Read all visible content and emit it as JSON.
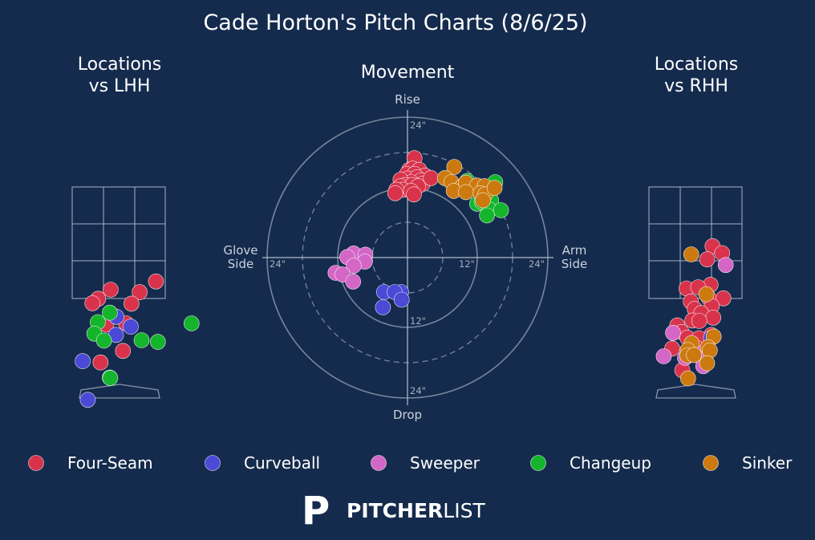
{
  "title": "Cade Horton's Pitch Charts (8/6/25)",
  "panels": {
    "lhh_title": [
      "Locations",
      "vs LHH"
    ],
    "movement_title": "Movement",
    "rhh_title": [
      "Locations",
      "vs RHH"
    ]
  },
  "movement_axes": {
    "top": "Rise",
    "bottom": "Drop",
    "left": [
      "Glove",
      "Side"
    ],
    "right": [
      "Arm",
      "Side"
    ],
    "ring_labels": {
      "h_inner": "12\"",
      "h_outer": "24\"",
      "v_inner": "12\"",
      "v_outer": "24\""
    }
  },
  "colors": {
    "background": "#152b4d",
    "Four-Seam": "#d9334c",
    "Curveball": "#4a4ad6",
    "Sweeper": "#d466c6",
    "Changeup": "#14b52c",
    "Sinker": "#cc7a0f"
  },
  "legend": [
    {
      "name": "Four-Seam"
    },
    {
      "name": "Curveball"
    },
    {
      "name": "Sweeper"
    },
    {
      "name": "Changeup"
    },
    {
      "name": "Sinker"
    }
  ],
  "chart_data": [
    {
      "type": "scatter",
      "panel": "Locations vs LHH",
      "units": "feet from plate center (x), feet above ground (y)",
      "series": [
        {
          "name": "Four-Seam",
          "points": [
            [
              0.96,
              3.0
            ],
            [
              -0.21,
              2.8
            ],
            [
              0.54,
              2.74
            ],
            [
              -0.53,
              2.58
            ],
            [
              -0.68,
              2.47
            ],
            [
              0.33,
              2.46
            ],
            [
              -0.32,
              1.95
            ],
            [
              0.19,
              1.98
            ],
            [
              0.11,
              1.31
            ],
            [
              -0.47,
              1.03
            ]
          ]
        },
        {
          "name": "Curveball",
          "points": [
            [
              -0.06,
              2.14
            ],
            [
              0.31,
              1.9
            ],
            [
              -0.07,
              1.7
            ],
            [
              -0.93,
              1.06
            ],
            [
              -0.8,
              0.12
            ]
          ]
        },
        {
          "name": "Changeup",
          "points": [
            [
              -0.23,
              2.24
            ],
            [
              1.88,
              1.98
            ],
            [
              -0.54,
              2.01
            ],
            [
              -0.63,
              1.73
            ],
            [
              -0.38,
              1.56
            ],
            [
              0.59,
              1.57
            ],
            [
              1.01,
              1.53
            ],
            [
              -0.23,
              0.66
            ],
            [
              -0.22,
              0.65
            ]
          ]
        }
      ]
    },
    {
      "type": "scatter",
      "panel": "Movement",
      "units": "inches of break (x: arm side positive, y: rise positive)",
      "series": [
        {
          "name": "Four-Seam",
          "points": [
            [
              1.2,
              17.0
            ],
            [
              0.3,
              15.0
            ],
            [
              0.9,
              15.2
            ],
            [
              2.0,
              15.0
            ],
            [
              -0.1,
              14.3
            ],
            [
              1.2,
              14.3
            ],
            [
              3.0,
              14.0
            ],
            [
              0.0,
              13.5
            ],
            [
              1.6,
              13.7
            ],
            [
              2.3,
              13.2
            ],
            [
              0.6,
              12.9
            ],
            [
              -1.2,
              13.3
            ],
            [
              -0.4,
              12.4
            ],
            [
              2.6,
              12.6
            ],
            [
              4.0,
              13.6
            ],
            [
              -1.2,
              12.2
            ],
            [
              0.8,
              12.4
            ],
            [
              1.8,
              12.2
            ],
            [
              -0.8,
              11.6
            ],
            [
              -1.9,
              11.6
            ],
            [
              0.6,
              11.4
            ],
            [
              -2.1,
              11.0
            ],
            [
              1.1,
              10.8
            ]
          ]
        },
        {
          "name": "Curveball",
          "points": [
            [
              -4.0,
              -5.9
            ],
            [
              -1.1,
              -5.9
            ],
            [
              -2.2,
              -5.9
            ],
            [
              -1.0,
              -7.2
            ],
            [
              -4.2,
              -8.5
            ]
          ]
        },
        {
          "name": "Sweeper",
          "points": [
            [
              -9.2,
              0.7
            ],
            [
              -7.2,
              0.5
            ],
            [
              -10.3,
              0.1
            ],
            [
              -7.3,
              -0.7
            ],
            [
              -9.2,
              -1.4
            ],
            [
              -12.3,
              -2.6
            ],
            [
              -11.1,
              -2.9
            ],
            [
              -9.3,
              -4.1
            ]
          ]
        },
        {
          "name": "Changeup",
          "points": [
            [
              15.0,
              12.9
            ],
            [
              10.2,
              13.1
            ],
            [
              12.6,
              10.2
            ],
            [
              14.3,
              9.8
            ],
            [
              11.9,
              9.2
            ],
            [
              12.7,
              9.5
            ],
            [
              14.0,
              8.2
            ],
            [
              16.0,
              8.1
            ],
            [
              13.6,
              7.2
            ]
          ]
        },
        {
          "name": "Sinker",
          "points": [
            [
              8.0,
              15.5
            ],
            [
              6.4,
              13.6
            ],
            [
              7.5,
              12.9
            ],
            [
              9.4,
              12.2
            ],
            [
              10.0,
              12.8
            ],
            [
              11.9,
              12.3
            ],
            [
              13.2,
              12.2
            ],
            [
              7.9,
              11.4
            ],
            [
              10.0,
              11.2
            ],
            [
              12.5,
              11.0
            ],
            [
              13.3,
              10.8
            ],
            [
              14.9,
              11.9
            ],
            [
              12.9,
              9.8
            ]
          ]
        }
      ]
    },
    {
      "type": "scatter",
      "panel": "Locations vs RHH",
      "units": "feet from plate center (x), feet above ground (y)",
      "series": [
        {
          "name": "Four-Seam",
          "points": [
            [
              0.44,
              3.86
            ],
            [
              0.69,
              3.69
            ],
            [
              0.3,
              3.54
            ],
            [
              0.39,
              2.92
            ],
            [
              -0.23,
              2.83
            ],
            [
              0.07,
              2.86
            ],
            [
              0.34,
              2.6
            ],
            [
              0.72,
              2.59
            ],
            [
              -0.12,
              2.51
            ],
            [
              0.42,
              2.4
            ],
            [
              -0.02,
              2.33
            ],
            [
              0.15,
              2.23
            ],
            [
              0.46,
              2.12
            ],
            [
              -0.08,
              2.05
            ],
            [
              0.1,
              2.04
            ],
            [
              -0.47,
              1.93
            ],
            [
              -0.36,
              1.77
            ],
            [
              0.41,
              1.7
            ],
            [
              -0.21,
              1.63
            ],
            [
              0.09,
              1.62
            ],
            [
              0.03,
              1.38
            ],
            [
              -0.6,
              1.37
            ],
            [
              -0.34,
              0.84
            ]
          ]
        },
        {
          "name": "Curveball",
          "points": [
            [
              0.4,
              1.63
            ]
          ]
        },
        {
          "name": "Sweeper",
          "points": [
            [
              0.78,
              3.4
            ],
            [
              -0.58,
              1.75
            ],
            [
              -0.27,
              1.14
            ],
            [
              0.06,
              1.25
            ],
            [
              0.24,
              1.11
            ],
            [
              0.2,
              0.94
            ],
            [
              -0.82,
              1.18
            ]
          ]
        },
        {
          "name": "Sinker",
          "points": [
            [
              -0.11,
              3.66
            ],
            [
              0.28,
              2.69
            ],
            [
              0.47,
              1.66
            ],
            [
              -0.1,
              1.5
            ],
            [
              0.32,
              1.4
            ],
            [
              -0.2,
              1.33
            ],
            [
              0.37,
              1.32
            ],
            [
              -0.21,
              1.2
            ],
            [
              -0.04,
              1.21
            ],
            [
              0.3,
              1.01
            ],
            [
              -0.19,
              0.64
            ]
          ]
        }
      ]
    }
  ],
  "brand": {
    "mark": "P",
    "bold": "PITCHER",
    "light": "LIST"
  }
}
